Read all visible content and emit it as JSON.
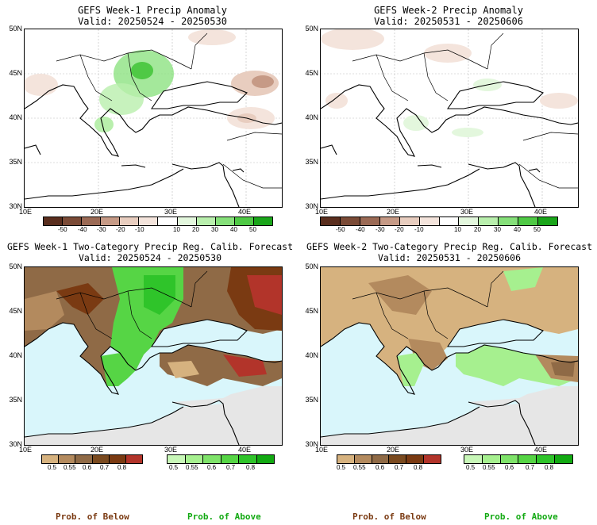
{
  "panels": [
    {
      "title": "GEFS Week-1 Precip Anomaly",
      "valid": "Valid: 20250524 - 20250530"
    },
    {
      "title": "GEFS Week-2 Precip Anomaly",
      "valid": "Valid: 20250531 - 20250606"
    },
    {
      "title": "GEFS Week-1 Two-Category Precip Reg. Calib. Forecast",
      "valid": "Valid: 20250524 - 20250530"
    },
    {
      "title": "GEFS Week-2 Two-Category Precip Reg. Calib. Forecast",
      "valid": "Valid: 20250531 - 20250606"
    }
  ],
  "lat_labels": [
    "50N",
    "45N",
    "40N",
    "35N",
    "30N"
  ],
  "lon_labels": [
    "10E",
    "20E",
    "30E",
    "40E"
  ],
  "anomaly_colorbar": {
    "labels": [
      "-50",
      "-40",
      "-30",
      "-20",
      "-10",
      "10",
      "20",
      "30",
      "40",
      "50"
    ],
    "colors": [
      "#5a2e1e",
      "#7a4a36",
      "#9b6a55",
      "#c69a86",
      "#e8cdbf",
      "#f4e4dc",
      "#ffffff",
      "#e3f7dd",
      "#b9efad",
      "#86e07a",
      "#4fc945",
      "#1aa51a"
    ]
  },
  "prob_below_bar": {
    "labels": [
      "0.5",
      "0.55",
      "0.6",
      "0.7",
      "0.8"
    ],
    "colors": [
      "#d6b27f",
      "#b38a5e",
      "#8f6a46",
      "#7a4a1f",
      "#7a3a12",
      "#b2342a"
    ]
  },
  "prob_above_bar": {
    "labels": [
      "0.5",
      "0.55",
      "0.6",
      "0.7",
      "0.8"
    ],
    "colors": [
      "#c8f7b8",
      "#a6f08f",
      "#7fe36a",
      "#56d545",
      "#2fc42a",
      "#12a912"
    ]
  },
  "prob_captions": {
    "below": "Prob. of Below",
    "above": "Prob. of Above"
  },
  "colors": {
    "ocean": "#d9f6fb",
    "land_gray": "#e6e6e6",
    "below_color": "#7a3a12",
    "above_color": "#12a912"
  }
}
